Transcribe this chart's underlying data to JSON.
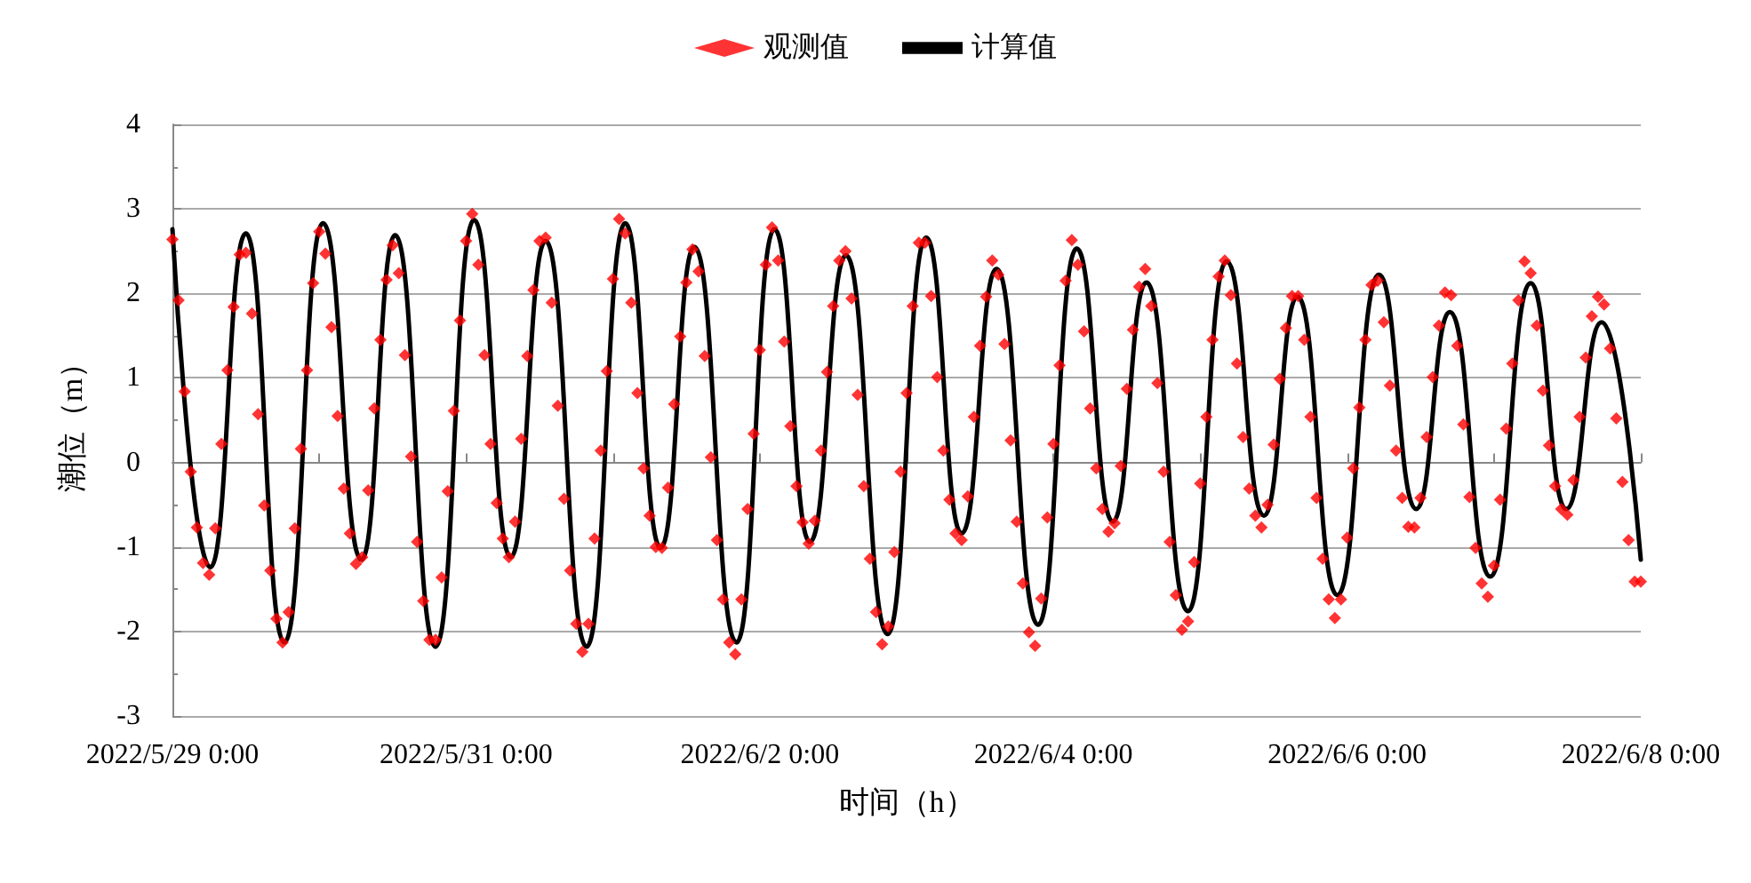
{
  "chart_data": {
    "type": "line",
    "xlabel": "时间（h）",
    "ylabel": "潮位（m）",
    "xlim": [
      "2022-05-29T00:00",
      "2022-06-08T00:00"
    ],
    "xticks": [
      {
        "value": "2022-05-29T00:00",
        "label": "2022/5/29 0:00"
      },
      {
        "value": "2022-05-30T00:00",
        "label": null
      },
      {
        "value": "2022-05-31T00:00",
        "label": "2022/5/31 0:00"
      },
      {
        "value": "2022-06-01T00:00",
        "label": null
      },
      {
        "value": "2022-06-02T00:00",
        "label": "2022/6/2 0:00"
      },
      {
        "value": "2022-06-03T00:00",
        "label": null
      },
      {
        "value": "2022-06-04T00:00",
        "label": "2022/6/4 0:00"
      },
      {
        "value": "2022-06-05T00:00",
        "label": null
      },
      {
        "value": "2022-06-06T00:00",
        "label": "2022/6/6 0:00"
      },
      {
        "value": "2022-06-07T00:00",
        "label": null
      },
      {
        "value": "2022-06-08T00:00",
        "label": "2022/6/8 0:00"
      }
    ],
    "ylim": [
      -3,
      4
    ],
    "yticks": [
      -3,
      -2,
      -1,
      0,
      1,
      2,
      3,
      4
    ],
    "grid": "y",
    "legend": "top",
    "series": [
      {
        "name": "观测值",
        "type": "scatter",
        "color": "#ff0000",
        "marker": "diamond",
        "x": [
          "2022-05-29T00:00",
          "2022-05-29T01:00",
          "2022-05-29T02:00",
          "2022-05-29T03:00",
          "2022-05-29T04:00",
          "2022-05-29T05:00",
          "2022-05-29T06:00",
          "2022-05-29T07:00",
          "2022-05-29T08:00",
          "2022-05-29T09:00",
          "2022-05-29T10:00",
          "2022-05-29T11:00",
          "2022-05-29T12:00",
          "2022-05-29T13:00",
          "2022-05-29T14:00",
          "2022-05-29T15:00",
          "2022-05-29T16:00",
          "2022-05-29T17:00",
          "2022-05-29T18:00",
          "2022-05-29T19:00",
          "2022-05-29T20:00",
          "2022-05-29T21:00",
          "2022-05-29T22:00",
          "2022-05-29T23:00",
          "2022-05-30T00:00",
          "2022-05-30T01:00",
          "2022-05-30T02:00",
          "2022-05-30T03:00",
          "2022-05-30T04:00",
          "2022-05-30T05:00",
          "2022-05-30T06:00",
          "2022-05-30T07:00",
          "2022-05-30T08:00",
          "2022-05-30T09:00",
          "2022-05-30T10:00",
          "2022-05-30T11:00",
          "2022-05-30T12:00",
          "2022-05-30T13:00",
          "2022-05-30T14:00",
          "2022-05-30T15:00",
          "2022-05-30T16:00",
          "2022-05-30T17:00",
          "2022-05-30T18:00",
          "2022-05-30T19:00",
          "2022-05-30T20:00",
          "2022-05-30T21:00",
          "2022-05-30T22:00",
          "2022-05-30T23:00",
          "2022-05-31T00:00",
          "2022-05-31T01:00",
          "2022-05-31T02:00",
          "2022-05-31T03:00",
          "2022-05-31T04:00",
          "2022-05-31T05:00",
          "2022-05-31T06:00",
          "2022-05-31T07:00",
          "2022-05-31T08:00",
          "2022-05-31T09:00",
          "2022-05-31T10:00",
          "2022-05-31T11:00",
          "2022-05-31T12:00",
          "2022-05-31T13:00",
          "2022-05-31T14:00",
          "2022-05-31T15:00",
          "2022-05-31T16:00",
          "2022-05-31T17:00",
          "2022-05-31T18:00",
          "2022-05-31T19:00",
          "2022-05-31T20:00",
          "2022-05-31T21:00",
          "2022-05-31T22:00",
          "2022-05-31T23:00",
          "2022-06-01T00:00",
          "2022-06-01T01:00",
          "2022-06-01T02:00",
          "2022-06-01T03:00",
          "2022-06-01T04:00",
          "2022-06-01T05:00",
          "2022-06-01T06:00",
          "2022-06-01T07:00",
          "2022-06-01T08:00",
          "2022-06-01T09:00",
          "2022-06-01T10:00",
          "2022-06-01T11:00",
          "2022-06-01T12:00",
          "2022-06-01T13:00",
          "2022-06-01T14:00",
          "2022-06-01T15:00",
          "2022-06-01T16:00",
          "2022-06-01T17:00",
          "2022-06-01T18:00",
          "2022-06-01T19:00",
          "2022-06-01T20:00",
          "2022-06-01T21:00",
          "2022-06-01T22:00",
          "2022-06-01T23:00",
          "2022-06-02T00:00",
          "2022-06-02T01:00",
          "2022-06-02T02:00",
          "2022-06-02T03:00",
          "2022-06-02T04:00",
          "2022-06-02T05:00",
          "2022-06-02T06:00",
          "2022-06-02T07:00",
          "2022-06-02T08:00",
          "2022-06-02T09:00",
          "2022-06-02T10:00",
          "2022-06-02T11:00",
          "2022-06-02T12:00",
          "2022-06-02T13:00",
          "2022-06-02T14:00",
          "2022-06-02T15:00",
          "2022-06-02T16:00",
          "2022-06-02T17:00",
          "2022-06-02T18:00",
          "2022-06-02T19:00",
          "2022-06-02T20:00",
          "2022-06-02T21:00",
          "2022-06-02T22:00",
          "2022-06-02T23:00",
          "2022-06-03T00:00",
          "2022-06-03T01:00",
          "2022-06-03T02:00",
          "2022-06-03T03:00",
          "2022-06-03T04:00",
          "2022-06-03T05:00",
          "2022-06-03T06:00",
          "2022-06-03T07:00",
          "2022-06-03T08:00",
          "2022-06-03T09:00",
          "2022-06-03T10:00",
          "2022-06-03T11:00",
          "2022-06-03T12:00",
          "2022-06-03T13:00",
          "2022-06-03T14:00",
          "2022-06-03T15:00",
          "2022-06-03T16:00",
          "2022-06-03T17:00",
          "2022-06-03T18:00",
          "2022-06-03T19:00",
          "2022-06-03T20:00",
          "2022-06-03T21:00",
          "2022-06-03T22:00",
          "2022-06-03T23:00",
          "2022-06-04T00:00",
          "2022-06-04T01:00",
          "2022-06-04T02:00",
          "2022-06-04T03:00",
          "2022-06-04T04:00",
          "2022-06-04T05:00",
          "2022-06-04T06:00",
          "2022-06-04T07:00",
          "2022-06-04T08:00",
          "2022-06-04T09:00",
          "2022-06-04T10:00",
          "2022-06-04T11:00",
          "2022-06-04T12:00",
          "2022-06-04T13:00",
          "2022-06-04T14:00",
          "2022-06-04T15:00",
          "2022-06-04T16:00",
          "2022-06-04T17:00",
          "2022-06-04T18:00",
          "2022-06-04T19:00",
          "2022-06-04T20:00",
          "2022-06-04T21:00",
          "2022-06-04T22:00",
          "2022-06-04T23:00",
          "2022-06-05T00:00",
          "2022-06-05T01:00",
          "2022-06-05T02:00",
          "2022-06-05T03:00",
          "2022-06-05T04:00",
          "2022-06-05T05:00",
          "2022-06-05T06:00",
          "2022-06-05T07:00",
          "2022-06-05T08:00",
          "2022-06-05T09:00",
          "2022-06-05T10:00",
          "2022-06-05T11:00",
          "2022-06-05T12:00",
          "2022-06-05T13:00",
          "2022-06-05T14:00",
          "2022-06-05T15:00",
          "2022-06-05T16:00",
          "2022-06-05T17:00",
          "2022-06-05T18:00",
          "2022-06-05T19:00",
          "2022-06-05T20:00",
          "2022-06-05T21:00",
          "2022-06-05T22:00",
          "2022-06-05T23:00",
          "2022-06-06T00:00",
          "2022-06-06T01:00",
          "2022-06-06T02:00",
          "2022-06-06T03:00",
          "2022-06-06T04:00",
          "2022-06-06T05:00",
          "2022-06-06T06:00",
          "2022-06-06T07:00",
          "2022-06-06T08:00",
          "2022-06-06T09:00",
          "2022-06-06T10:00",
          "2022-06-06T11:00",
          "2022-06-06T12:00",
          "2022-06-06T13:00",
          "2022-06-06T14:00",
          "2022-06-06T15:00",
          "2022-06-06T16:00",
          "2022-06-06T17:00",
          "2022-06-06T18:00",
          "2022-06-06T19:00",
          "2022-06-06T20:00",
          "2022-06-06T21:00",
          "2022-06-06T22:00",
          "2022-06-06T23:00",
          "2022-06-07T00:00",
          "2022-06-07T01:00",
          "2022-06-07T02:00",
          "2022-06-07T03:00",
          "2022-06-07T04:00",
          "2022-06-07T05:00",
          "2022-06-07T06:00",
          "2022-06-07T07:00",
          "2022-06-07T08:00",
          "2022-06-07T09:00",
          "2022-06-07T10:00",
          "2022-06-07T11:00",
          "2022-06-07T12:00",
          "2022-06-07T13:00",
          "2022-06-07T14:00",
          "2022-06-07T15:00",
          "2022-06-07T16:00",
          "2022-06-07T17:00",
          "2022-06-07T18:00",
          "2022-06-07T19:00",
          "2022-06-07T20:00",
          "2022-06-07T21:00",
          "2022-06-07T22:00",
          "2022-06-07T23:00",
          "2022-06-08T00:00"
        ],
        "values": [
          2.64,
          1.92,
          0.84,
          -0.11,
          -0.77,
          -1.19,
          -1.33,
          -0.78,
          0.22,
          1.09,
          1.84,
          2.46,
          2.48,
          1.76,
          0.57,
          -0.51,
          -1.28,
          -1.85,
          -2.13,
          -1.77,
          -0.78,
          0.16,
          1.09,
          2.12,
          2.73,
          2.47,
          1.6,
          0.55,
          -0.31,
          -0.84,
          -1.2,
          -1.12,
          -0.33,
          0.64,
          1.45,
          2.16,
          2.57,
          2.24,
          1.27,
          0.07,
          -0.94,
          -1.64,
          -2.1,
          -2.1,
          -1.36,
          -0.34,
          0.61,
          1.68,
          2.62,
          2.94,
          2.34,
          1.27,
          0.22,
          -0.48,
          -0.9,
          -1.12,
          -0.7,
          0.28,
          1.26,
          2.04,
          2.62,
          2.66,
          1.89,
          0.67,
          -0.43,
          -1.28,
          -1.91,
          -2.24,
          -1.91,
          -0.9,
          0.14,
          1.08,
          2.17,
          2.88,
          2.71,
          1.89,
          0.82,
          -0.07,
          -0.63,
          -1.0,
          -1.01,
          -0.3,
          0.69,
          1.49,
          2.13,
          2.52,
          2.26,
          1.26,
          0.06,
          -0.92,
          -1.62,
          -2.13,
          -2.27,
          -1.62,
          -0.55,
          0.34,
          1.33,
          2.34,
          2.78,
          2.39,
          1.43,
          0.43,
          -0.28,
          -0.71,
          -0.96,
          -0.69,
          0.14,
          1.07,
          1.85,
          2.39,
          2.5,
          1.94,
          0.8,
          -0.28,
          -1.14,
          -1.77,
          -2.15,
          -1.94,
          -1.06,
          -0.11,
          0.82,
          1.85,
          2.6,
          2.6,
          1.97,
          1.01,
          0.14,
          -0.44,
          -0.84,
          -0.92,
          -0.4,
          0.54,
          1.38,
          1.96,
          2.39,
          2.22,
          1.4,
          0.26,
          -0.7,
          -1.43,
          -2.01,
          -2.17,
          -1.61,
          -0.65,
          0.22,
          1.15,
          2.15,
          2.63,
          2.34,
          1.55,
          0.64,
          -0.07,
          -0.55,
          -0.82,
          -0.72,
          -0.04,
          0.87,
          1.57,
          2.08,
          2.29,
          1.85,
          0.94,
          -0.11,
          -0.94,
          -1.57,
          -1.98,
          -1.88,
          -1.18,
          -0.25,
          0.54,
          1.45,
          2.2,
          2.39,
          1.98,
          1.17,
          0.3,
          -0.31,
          -0.63,
          -0.77,
          -0.5,
          0.21,
          0.99,
          1.59,
          1.97,
          1.97,
          1.45,
          0.54,
          -0.42,
          -1.14,
          -1.62,
          -1.84,
          -1.62,
          -0.89,
          -0.07,
          0.65,
          1.45,
          2.1,
          2.15,
          1.66,
          0.91,
          0.14,
          -0.42,
          -0.76,
          -0.77,
          -0.42,
          0.3,
          1.01,
          1.62,
          2.01,
          1.98,
          1.38,
          0.45,
          -0.41,
          -1.01,
          -1.43,
          -1.59,
          -1.22,
          -0.44,
          0.4,
          1.17,
          1.92,
          2.38,
          2.24,
          1.62,
          0.85,
          0.2,
          -0.28,
          -0.55,
          -0.62,
          -0.21,
          0.54,
          1.24,
          1.73,
          1.96,
          1.87,
          1.35,
          0.52,
          -0.23,
          -0.92,
          -1.41,
          -1.41
        ]
      },
      {
        "name": "计算值",
        "type": "line",
        "color": "#000000",
        "line_style": "solid",
        "x": [
          "2022-05-29T00:00",
          "2022-05-29T06:12",
          "2022-05-29T12:00",
          "2022-05-29T18:18",
          "2022-05-30T00:36",
          "2022-05-30T06:54",
          "2022-05-30T12:24",
          "2022-05-30T19:00",
          "2022-05-31T01:18",
          "2022-05-31T07:18",
          "2022-05-31T13:00",
          "2022-05-31T19:42",
          "2022-06-01T02:00",
          "2022-06-01T07:48",
          "2022-06-01T13:18",
          "2022-06-01T20:12",
          "2022-06-02T02:24",
          "2022-06-02T08:12",
          "2022-06-02T14:06",
          "2022-06-02T20:54",
          "2022-06-03T03:12",
          "2022-06-03T09:00",
          "2022-06-03T14:42",
          "2022-06-03T21:30",
          "2022-06-04T03:48",
          "2022-06-04T09:42",
          "2022-06-04T15:12",
          "2022-06-04T22:00",
          "2022-06-05T04:18",
          "2022-06-05T10:24",
          "2022-06-05T15:54",
          "2022-06-05T22:24",
          "2022-06-06T05:12",
          "2022-06-06T11:18",
          "2022-06-06T16:48",
          "2022-06-06T23:24",
          "2022-06-07T06:00",
          "2022-06-07T11:48",
          "2022-06-07T17:36",
          "2022-06-08T00:00"
        ],
        "values": [
          2.76,
          -1.24,
          2.71,
          -2.13,
          2.83,
          -1.15,
          2.69,
          -2.18,
          2.87,
          -1.12,
          2.62,
          -2.18,
          2.83,
          -1.01,
          2.55,
          -2.13,
          2.76,
          -0.94,
          2.45,
          -2.03,
          2.66,
          -0.84,
          2.29,
          -1.92,
          2.53,
          -0.7,
          2.13,
          -1.76,
          2.38,
          -0.63,
          1.96,
          -1.57,
          2.22,
          -0.55,
          1.78,
          -1.35,
          2.12,
          -0.55,
          1.66,
          -1.15
        ]
      }
    ]
  }
}
